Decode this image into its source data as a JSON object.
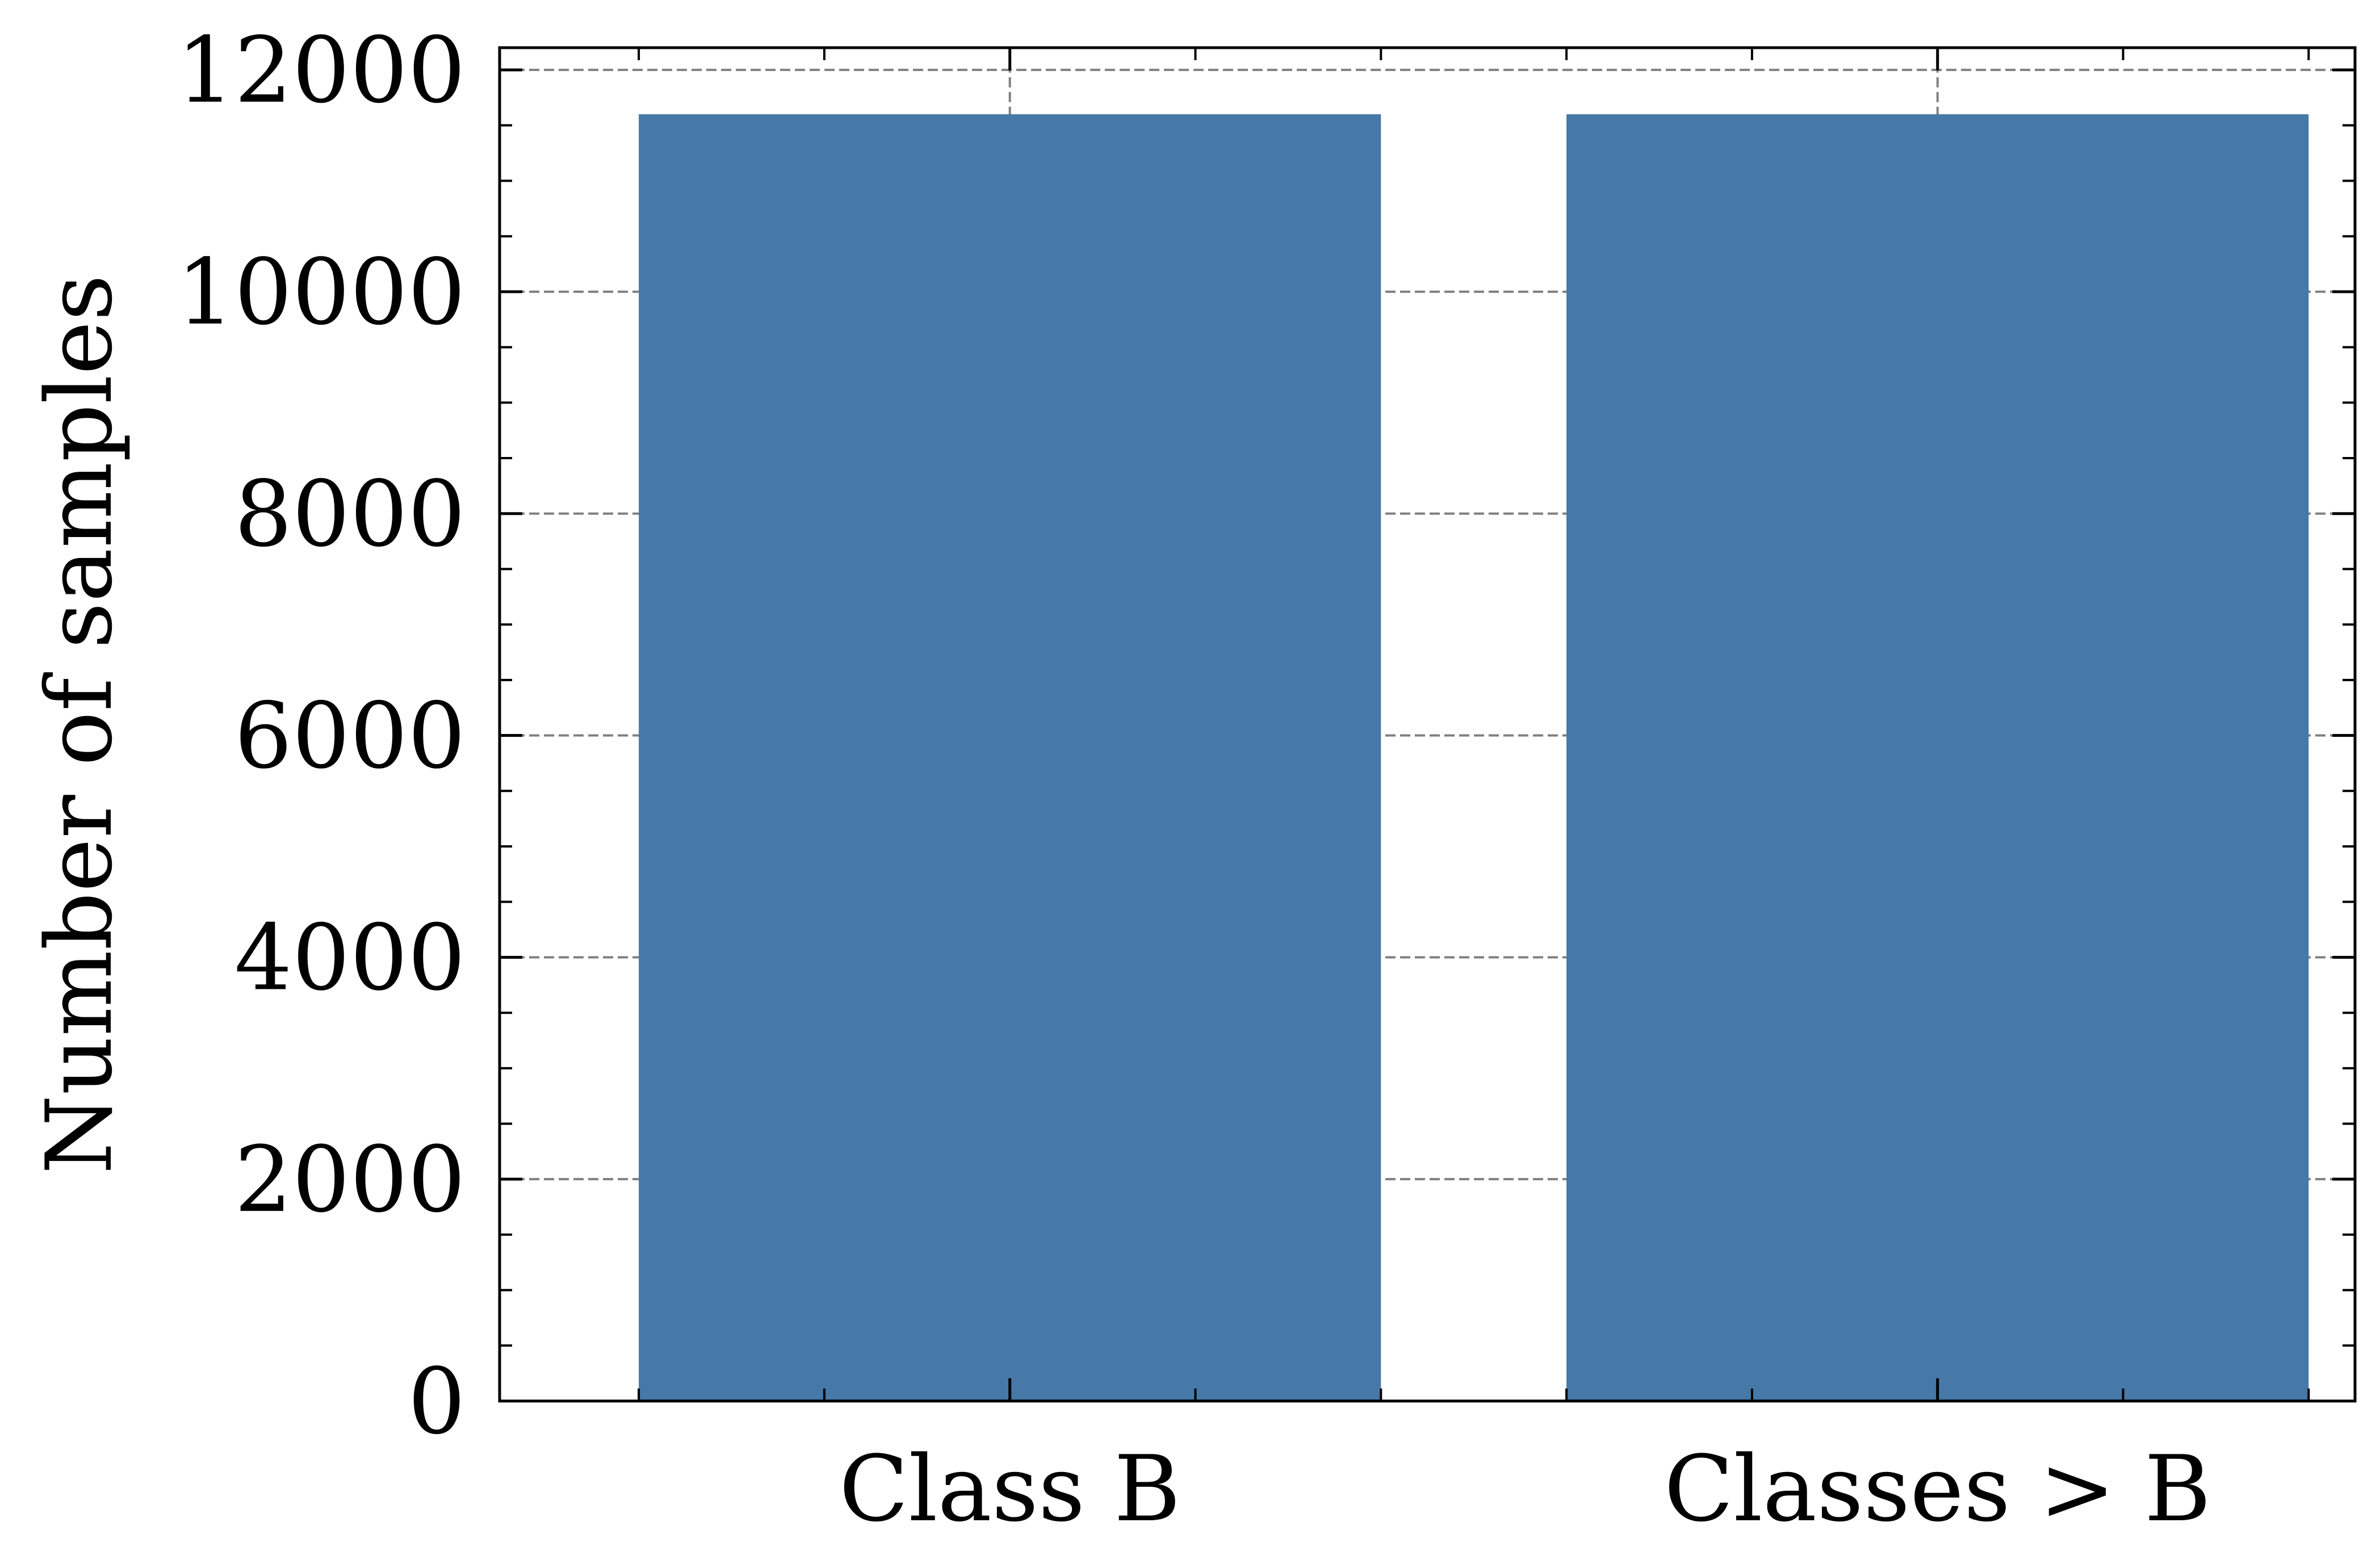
{
  "chart_data": {
    "type": "bar",
    "title": "",
    "xlabel": "",
    "ylabel": "Number of samples",
    "categories": [
      "Class B",
      "Classes > B"
    ],
    "values": [
      11600,
      11600
    ],
    "ylim": [
      0,
      12200
    ],
    "yticks": [
      0,
      2000,
      4000,
      6000,
      8000,
      10000,
      12000
    ],
    "yminor_step": 500,
    "grid": true,
    "legend": "none",
    "colors": {
      "bar": "#4678a8",
      "grid": "#808080",
      "axis": "#000000"
    }
  }
}
